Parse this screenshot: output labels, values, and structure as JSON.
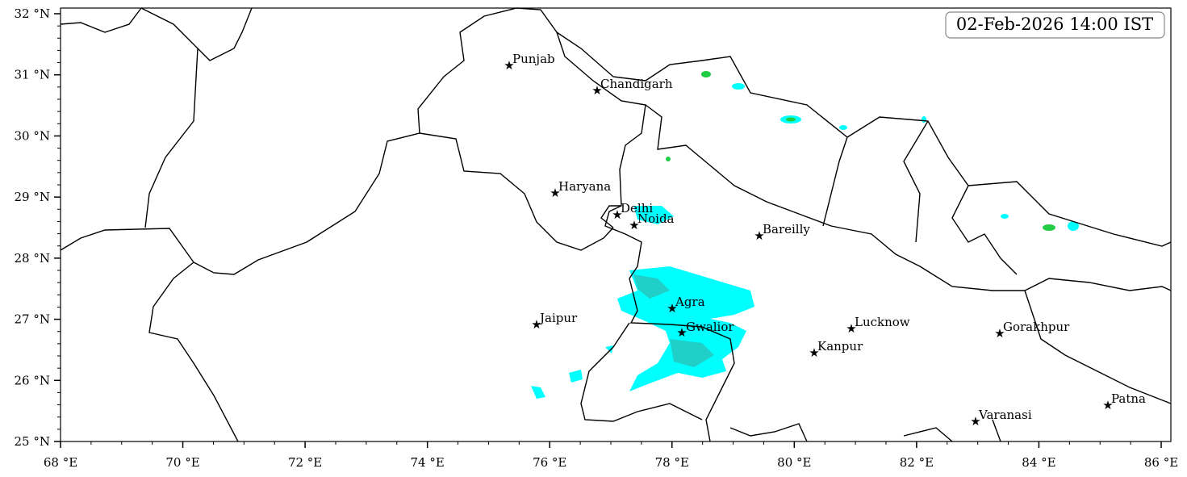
{
  "timestamp": "02-Feb-2026 14:00 IST",
  "cities": [
    "Punjab",
    "Chandigarh",
    "Haryana",
    "Delhi",
    "Noida",
    "Bareilly",
    "Agra",
    "Jaipur",
    "Gwalior",
    "Lucknow",
    "Kanpur",
    "Gorakhpur",
    "Varanasi",
    "Patna"
  ],
  "x_axis": {
    "ticks": [
      {
        "value": 68,
        "label": "68 °E"
      },
      {
        "value": 70,
        "label": "70 °E"
      },
      {
        "value": 72,
        "label": "72 °E"
      },
      {
        "value": 74,
        "label": "74 °E"
      },
      {
        "value": 76,
        "label": "76 °E"
      },
      {
        "value": 78,
        "label": "78 °E"
      },
      {
        "value": 80,
        "label": "80 °E"
      },
      {
        "value": 82,
        "label": "82 °E"
      },
      {
        "value": 84,
        "label": "84 °E"
      },
      {
        "value": 86,
        "label": "86 °E"
      }
    ]
  },
  "y_axis": {
    "ticks": [
      {
        "value": 25,
        "label": "25 °N"
      },
      {
        "value": 26,
        "label": "26 °N"
      },
      {
        "value": 27,
        "label": "27 °N"
      },
      {
        "value": 28,
        "label": "28 °N"
      },
      {
        "value": 29,
        "label": "29 °N"
      },
      {
        "value": 30,
        "label": "30 °N"
      },
      {
        "value": 31,
        "label": "31 °N"
      },
      {
        "value": 32,
        "label": "32 °N"
      }
    ]
  }
}
